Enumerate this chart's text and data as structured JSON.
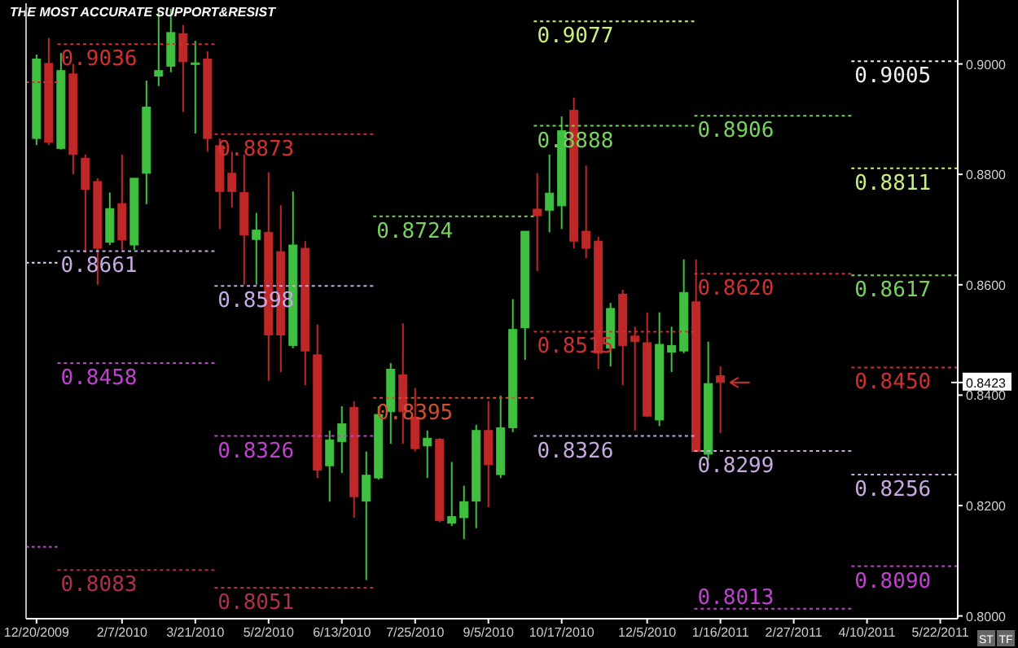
{
  "chart_data": {
    "type": "candlestick",
    "title": "THE MOST ACCURATE SUPPORT&RESIST",
    "x": [
      "2009-12-20",
      "2009-12-27",
      "2010-01-03",
      "2010-01-10",
      "2010-01-17",
      "2010-01-24",
      "2010-01-31",
      "2010-02-07",
      "2010-02-14",
      "2010-02-21",
      "2010-02-28",
      "2010-03-07",
      "2010-03-14",
      "2010-03-21",
      "2010-03-28",
      "2010-04-04",
      "2010-04-11",
      "2010-04-18",
      "2010-04-25",
      "2010-05-02",
      "2010-05-09",
      "2010-05-16",
      "2010-05-23",
      "2010-05-30",
      "2010-06-06",
      "2010-06-13",
      "2010-06-20",
      "2010-06-27",
      "2010-07-04",
      "2010-07-11",
      "2010-07-18",
      "2010-07-25",
      "2010-08-01",
      "2010-08-08",
      "2010-08-15",
      "2010-08-22",
      "2010-08-29",
      "2010-09-05",
      "2010-09-12",
      "2010-09-19",
      "2010-09-26",
      "2010-10-03",
      "2010-10-10",
      "2010-10-17",
      "2010-10-24",
      "2010-10-31",
      "2010-11-07",
      "2010-11-14",
      "2010-11-21",
      "2010-11-28",
      "2010-12-05",
      "2010-12-12",
      "2010-12-19",
      "2010-12-26",
      "2011-01-02",
      "2011-01-09",
      "2011-01-16"
    ],
    "ohlc": [
      [
        0.8865,
        0.9017,
        0.8853,
        0.9009
      ],
      [
        0.9001,
        0.9047,
        0.8853,
        0.8858
      ],
      [
        0.8847,
        0.902,
        0.8845,
        0.8988
      ],
      [
        0.8982,
        0.9,
        0.88,
        0.8836
      ],
      [
        0.8829,
        0.8836,
        0.8658,
        0.8773
      ],
      [
        0.8787,
        0.8793,
        0.86,
        0.8666
      ],
      [
        0.8677,
        0.8767,
        0.8672,
        0.8738
      ],
      [
        0.8747,
        0.8836,
        0.8663,
        0.8681
      ],
      [
        0.8672,
        0.8793,
        0.8663,
        0.8793
      ],
      [
        0.8802,
        0.897,
        0.8746,
        0.8922
      ],
      [
        0.8978,
        0.91,
        0.896,
        0.8988
      ],
      [
        0.8996,
        0.91,
        0.8985,
        0.9057
      ],
      [
        0.9055,
        0.9071,
        0.8913,
        0.9004
      ],
      [
        0.9,
        0.9042,
        0.8874,
        0.9002
      ],
      [
        0.9009,
        0.9023,
        0.8841,
        0.8865
      ],
      [
        0.8852,
        0.8865,
        0.8701,
        0.8769
      ],
      [
        0.8802,
        0.8841,
        0.874,
        0.8769
      ],
      [
        0.8767,
        0.8836,
        0.86,
        0.869
      ],
      [
        0.8682,
        0.873,
        0.86,
        0.8699
      ],
      [
        0.8695,
        0.8804,
        0.8426,
        0.8509
      ],
      [
        0.866,
        0.8744,
        0.8442,
        0.8509
      ],
      [
        0.849,
        0.8769,
        0.8485,
        0.8672
      ],
      [
        0.8666,
        0.8679,
        0.8418,
        0.848
      ],
      [
        0.8473,
        0.8528,
        0.825,
        0.8264
      ],
      [
        0.8272,
        0.8336,
        0.8207,
        0.8319
      ],
      [
        0.8316,
        0.838,
        0.8259,
        0.8348
      ],
      [
        0.8378,
        0.8389,
        0.8178,
        0.8216
      ],
      [
        0.8208,
        0.8298,
        0.8065,
        0.8255
      ],
      [
        0.825,
        0.838,
        0.8247,
        0.8365
      ],
      [
        0.837,
        0.8458,
        0.8312,
        0.8447
      ],
      [
        0.8437,
        0.853,
        0.8312,
        0.837
      ],
      [
        0.836,
        0.8413,
        0.8298,
        0.8303
      ],
      [
        0.8308,
        0.8336,
        0.825,
        0.8322
      ],
      [
        0.832,
        0.8322,
        0.817,
        0.8173
      ],
      [
        0.8168,
        0.8279,
        0.8163,
        0.818
      ],
      [
        0.8178,
        0.8236,
        0.8139,
        0.8207
      ],
      [
        0.8208,
        0.8346,
        0.8159,
        0.8336
      ],
      [
        0.8336,
        0.8389,
        0.8197,
        0.8274
      ],
      [
        0.8256,
        0.8399,
        0.825,
        0.8341
      ],
      [
        0.8341,
        0.8574,
        0.8333,
        0.8519
      ],
      [
        0.8522,
        0.8697,
        0.8464,
        0.8697
      ],
      [
        0.8737,
        0.8802,
        0.8625,
        0.8725
      ],
      [
        0.8735,
        0.8836,
        0.8695,
        0.8766
      ],
      [
        0.8743,
        0.8905,
        0.8701,
        0.8879
      ],
      [
        0.8916,
        0.8939,
        0.8666,
        0.8679
      ],
      [
        0.8697,
        0.8816,
        0.8648,
        0.8666
      ],
      [
        0.8679,
        0.8687,
        0.8447,
        0.8476
      ],
      [
        0.8485,
        0.8567,
        0.8452,
        0.8557
      ],
      [
        0.8583,
        0.8591,
        0.8418,
        0.849
      ],
      [
        0.8507,
        0.8524,
        0.8336,
        0.8497
      ],
      [
        0.8495,
        0.855,
        0.836,
        0.8362
      ],
      [
        0.8355,
        0.855,
        0.8344,
        0.8492
      ],
      [
        0.8478,
        0.8524,
        0.8442,
        0.849
      ],
      [
        0.848,
        0.8646,
        0.8476,
        0.8586
      ],
      [
        0.8569,
        0.8646,
        0.8298,
        0.8298
      ],
      [
        0.8293,
        0.8497,
        0.8283,
        0.8421
      ],
      [
        0.8435,
        0.8452,
        0.8331,
        0.8423
      ]
    ],
    "colors": [
      "#40c040",
      "#c02828",
      "#40c040",
      "#c02828",
      "#c02828",
      "#c02828",
      "#40c040",
      "#c02828",
      "#40c040",
      "#40c040",
      "#40c040",
      "#40c040",
      "#c02828",
      "#40c040",
      "#c02828",
      "#c02828",
      "#c02828",
      "#c02828",
      "#40c040",
      "#c02828",
      "#c02828",
      "#40c040",
      "#c02828",
      "#c02828",
      "#40c040",
      "#40c040",
      "#c02828",
      "#40c040",
      "#40c040",
      "#40c040",
      "#c02828",
      "#c02828",
      "#40c040",
      "#c02828",
      "#40c040",
      "#40c040",
      "#40c040",
      "#c02828",
      "#40c040",
      "#40c040",
      "#40c040",
      "#c02828",
      "#40c040",
      "#40c040",
      "#c02828",
      "#c02828",
      "#c02828",
      "#40c040",
      "#c02828",
      "#c02828",
      "#c02828",
      "#40c040",
      "#40c040",
      "#40c040",
      "#c02828",
      "#40c040",
      "#c02828"
    ],
    "series": [
      {
        "type": "line",
        "x": [
          "2009-12-14",
          "2010-01-01"
        ],
        "values": [
          0.8967,
          0.8967
        ],
        "color": "#d03030",
        "line_style": "dotted"
      },
      {
        "type": "line",
        "x": [
          "2009-12-14",
          "2010-01-01"
        ],
        "values": [
          0.864,
          0.864
        ],
        "color": "#e8d8f8",
        "line_style": "dotted"
      },
      {
        "type": "line",
        "x": [
          "2009-12-14",
          "2010-01-01"
        ],
        "values": [
          0.8125,
          0.8125
        ],
        "color": "#c040d0",
        "line_style": "dotted"
      },
      {
        "type": "line",
        "x": [
          "2010-01-01",
          "2010-04-01"
        ],
        "values": [
          0.9036,
          0.9036
        ],
        "color": "#d03030",
        "line_style": "dotted"
      },
      {
        "type": "line",
        "x": [
          "2010-01-01",
          "2010-04-01"
        ],
        "values": [
          0.8661,
          0.8661
        ],
        "color": "#c8a8e0",
        "line_style": "dotted"
      },
      {
        "type": "line",
        "x": [
          "2010-01-01",
          "2010-04-01"
        ],
        "values": [
          0.8458,
          0.8458
        ],
        "color": "#c040d0",
        "line_style": "dotted"
      },
      {
        "type": "line",
        "x": [
          "2010-01-01",
          "2010-04-01"
        ],
        "values": [
          0.8083,
          0.8083
        ],
        "color": "#b0304a",
        "line_style": "dotted"
      },
      {
        "type": "line",
        "x": [
          "2010-04-01",
          "2010-07-01"
        ],
        "values": [
          0.8873,
          0.8873
        ],
        "color": "#d03030",
        "line_style": "dotted"
      },
      {
        "type": "line",
        "x": [
          "2010-04-01",
          "2010-07-01"
        ],
        "values": [
          0.8598,
          0.8598
        ],
        "color": "#c8a8e0",
        "line_style": "dotted"
      },
      {
        "type": "line",
        "x": [
          "2010-04-01",
          "2010-07-01"
        ],
        "values": [
          0.8326,
          0.8326
        ],
        "color": "#c040d0",
        "line_style": "dotted"
      },
      {
        "type": "line",
        "x": [
          "2010-04-01",
          "2010-07-01"
        ],
        "values": [
          0.8051,
          0.8051
        ],
        "color": "#b0304a",
        "line_style": "dotted"
      },
      {
        "type": "line",
        "x": [
          "2010-07-01",
          "2010-10-01"
        ],
        "values": [
          0.8724,
          0.8724
        ],
        "color": "#7ad060",
        "line_style": "dotted"
      },
      {
        "type": "line",
        "x": [
          "2010-07-01",
          "2010-10-01"
        ],
        "values": [
          0.8395,
          0.8395
        ],
        "color": "#d05030",
        "line_style": "dotted"
      },
      {
        "type": "line",
        "x": [
          "2010-10-01",
          "2011-01-01"
        ],
        "values": [
          0.9077,
          0.9077
        ],
        "color": "#c8f080",
        "line_style": "dotted"
      },
      {
        "type": "line",
        "x": [
          "2010-10-01",
          "2011-01-01"
        ],
        "values": [
          0.8888,
          0.8888
        ],
        "color": "#7ad060",
        "line_style": "dotted"
      },
      {
        "type": "line",
        "x": [
          "2010-10-01",
          "2011-01-01"
        ],
        "values": [
          0.8515,
          0.8515
        ],
        "color": "#d03030",
        "line_style": "dotted"
      },
      {
        "type": "line",
        "x": [
          "2010-10-01",
          "2011-01-01"
        ],
        "values": [
          0.8326,
          0.8326
        ],
        "color": "#c8a8e0",
        "line_style": "dotted"
      },
      {
        "type": "line",
        "x": [
          "2011-01-01",
          "2011-04-01"
        ],
        "values": [
          0.8906,
          0.8906
        ],
        "color": "#7ad060",
        "line_style": "dotted"
      },
      {
        "type": "line",
        "x": [
          "2011-01-01",
          "2011-04-01"
        ],
        "values": [
          0.862,
          0.862
        ],
        "color": "#d03030",
        "line_style": "dotted"
      },
      {
        "type": "line",
        "x": [
          "2011-01-01",
          "2011-04-01"
        ],
        "values": [
          0.8299,
          0.8299
        ],
        "color": "#c8a8e0",
        "line_style": "dotted"
      },
      {
        "type": "line",
        "x": [
          "2011-01-01",
          "2011-04-01"
        ],
        "values": [
          0.8013,
          0.8013
        ],
        "color": "#c040d0",
        "line_style": "dotted"
      },
      {
        "type": "line",
        "x": [
          "2011-04-01",
          "2011-06-01"
        ],
        "values": [
          0.9005,
          0.9005
        ],
        "color": "#f0f0f0",
        "line_style": "dotted"
      },
      {
        "type": "line",
        "x": [
          "2011-04-01",
          "2011-06-01"
        ],
        "values": [
          0.8811,
          0.8811
        ],
        "color": "#c8f080",
        "line_style": "dotted"
      },
      {
        "type": "line",
        "x": [
          "2011-04-01",
          "2011-06-01"
        ],
        "values": [
          0.8617,
          0.8617
        ],
        "color": "#7ad060",
        "line_style": "dotted"
      },
      {
        "type": "line",
        "x": [
          "2011-04-01",
          "2011-06-01"
        ],
        "values": [
          0.845,
          0.845
        ],
        "color": "#d03030",
        "line_style": "dotted"
      },
      {
        "type": "line",
        "x": [
          "2011-04-01",
          "2011-06-01"
        ],
        "values": [
          0.8256,
          0.8256
        ],
        "color": "#c8a8e0",
        "line_style": "dotted"
      },
      {
        "type": "line",
        "x": [
          "2011-04-01",
          "2011-06-01"
        ],
        "values": [
          0.809,
          0.809
        ],
        "color": "#c040d0",
        "line_style": "dotted"
      }
    ],
    "annotations": [
      {
        "text": "0.9036",
        "x": "2010-01-01",
        "y": 0.9036
      },
      {
        "text": "0.8661",
        "x": "2010-01-01",
        "y": 0.8661
      },
      {
        "text": "0.8458",
        "x": "2010-01-01",
        "y": 0.8458
      },
      {
        "text": "0.8083",
        "x": "2010-01-01",
        "y": 0.8083
      },
      {
        "text": "0.8873",
        "x": "2010-04-01",
        "y": 0.8873
      },
      {
        "text": "0.8598",
        "x": "2010-04-01",
        "y": 0.8598
      },
      {
        "text": "0.8326",
        "x": "2010-04-01",
        "y": 0.8326
      },
      {
        "text": "0.8051",
        "x": "2010-04-01",
        "y": 0.8051
      },
      {
        "text": "0.8724",
        "x": "2010-07-01",
        "y": 0.8724
      },
      {
        "text": "0.8395",
        "x": "2010-07-01",
        "y": 0.8395
      },
      {
        "text": "0.9077",
        "x": "2010-10-01",
        "y": 0.9077
      },
      {
        "text": "0.8888",
        "x": "2010-10-01",
        "y": 0.8888
      },
      {
        "text": "0.8515",
        "x": "2010-10-01",
        "y": 0.8515
      },
      {
        "text": "0.8326",
        "x": "2010-10-01",
        "y": 0.8326
      },
      {
        "text": "0.8906",
        "x": "2011-01-01",
        "y": 0.8906
      },
      {
        "text": "0.8620",
        "x": "2011-01-01",
        "y": 0.862
      },
      {
        "text": "0.8299",
        "x": "2011-01-01",
        "y": 0.8299
      },
      {
        "text": "0.8013",
        "x": "2011-01-01",
        "y": 0.8013
      },
      {
        "text": "0.9005",
        "x": "2011-04-01",
        "y": 0.9005
      },
      {
        "text": "0.8811",
        "x": "2011-04-01",
        "y": 0.8811
      },
      {
        "text": "0.8617",
        "x": "2011-04-01",
        "y": 0.8617
      },
      {
        "text": "0.8450",
        "x": "2011-04-01",
        "y": 0.845
      },
      {
        "text": "0.8256",
        "x": "2011-04-01",
        "y": 0.8256
      },
      {
        "text": "0.8090",
        "x": "2011-04-01",
        "y": 0.809
      },
      "ST",
      "TF"
    ],
    "ref_lines": [
      {
        "axis": "y",
        "value": 0.8423,
        "label": "0.8423"
      }
    ],
    "xlim": [
      "2009-12-14",
      "2011-06-01"
    ],
    "xticks": [
      {
        "value": "2009-12-20",
        "label": "12/20/2009"
      },
      {
        "value": "2010-02-07",
        "label": "2/7/2010"
      },
      {
        "value": "2010-03-21",
        "label": "3/21/2010"
      },
      {
        "value": "2010-05-02",
        "label": "5/2/2010"
      },
      {
        "value": "2010-06-13",
        "label": "6/13/2010"
      },
      {
        "value": "2010-07-25",
        "label": "7/25/2010"
      },
      {
        "value": "2010-09-05",
        "label": "9/5/2010"
      },
      {
        "value": "2010-10-17",
        "label": "10/17/2010"
      },
      {
        "value": "2010-12-05",
        "label": "12/5/2010"
      },
      {
        "value": "2011-01-16",
        "label": "1/16/2011"
      },
      {
        "value": "2011-02-27",
        "label": "2/27/2011"
      },
      {
        "value": "2011-04-10",
        "label": "4/10/2011"
      },
      {
        "value": "2011-05-22",
        "label": "5/22/2011"
      }
    ],
    "ylim": [
      0.7995,
      0.911
    ],
    "yticks": [
      {
        "value": 0.8,
        "label": "0.8000"
      },
      {
        "value": 0.82,
        "label": "0.8200"
      },
      {
        "value": 0.84,
        "label": "0.8400"
      },
      {
        "value": 0.86,
        "label": "0.8600"
      },
      {
        "value": 0.88,
        "label": "0.8800"
      },
      {
        "value": 0.9,
        "label": "0.9000"
      }
    ]
  }
}
